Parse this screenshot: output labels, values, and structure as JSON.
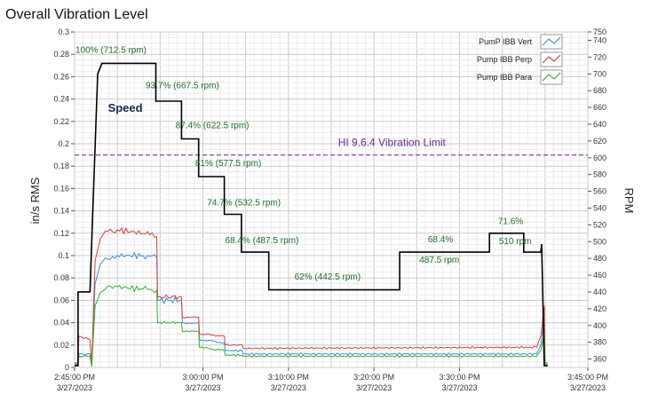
{
  "panel": {
    "title": "Overall Vibration Level"
  },
  "chart_data": {
    "type": "line",
    "title": "Overall Vibration Level",
    "ylabel": "in/s RMS",
    "y2label": "RPM",
    "xlim": [
      "2:45:00 PM",
      "3:45:00 PM"
    ],
    "ylim": [
      0,
      0.3
    ],
    "y2lim": [
      350,
      750
    ],
    "grid": true,
    "legend_position": "top-right",
    "x_ticks": [
      {
        "time": "2:45:00 PM",
        "date": "3/27/2023",
        "minutes": 0
      },
      {
        "time": "3:00:00 PM",
        "date": "3/27/2023",
        "minutes": 15
      },
      {
        "time": "3:10:00 PM",
        "date": "3/27/2023",
        "minutes": 25
      },
      {
        "time": "3:20:00 PM",
        "date": "3/27/2023",
        "minutes": 35
      },
      {
        "time": "3:30:00 PM",
        "date": "3/27/2023",
        "minutes": 45
      },
      {
        "time": "3:45:00 PM",
        "date": "3/27/2023",
        "minutes": 60
      }
    ],
    "y_ticks": [
      "0",
      "0.02",
      "0.04",
      "0.06",
      "0.08",
      "0.1",
      "0.12",
      "0.14",
      "0.16",
      "0.18",
      "0.2",
      "0.22",
      "0.24",
      "0.26",
      "0.28",
      "0.3"
    ],
    "y2_ticks": [
      "360",
      "380",
      "400",
      "420",
      "440",
      "460",
      "480",
      "500",
      "520",
      "540",
      "560",
      "580",
      "600",
      "620",
      "640",
      "660",
      "680",
      "700",
      "720",
      "740",
      "750"
    ],
    "limit_line": {
      "label": "HI 9.6.4 Vibration Limit",
      "value": 0.19,
      "color": "#8e44ad"
    },
    "speed_label": "Speed",
    "speed_series": {
      "name": "Speed",
      "color": "#000000",
      "points": [
        [
          0,
          352
        ],
        [
          0.4,
          352
        ],
        [
          0.4,
          440
        ],
        [
          1.8,
          440
        ],
        [
          2.7,
          700
        ],
        [
          3.2,
          712.5
        ],
        [
          9.5,
          712.5
        ],
        [
          9.5,
          667.5
        ],
        [
          12.5,
          667.5
        ],
        [
          12.5,
          622.5
        ],
        [
          14.5,
          622.5
        ],
        [
          14.5,
          577.5
        ],
        [
          17.5,
          577.5
        ],
        [
          17.5,
          532.5
        ],
        [
          19.5,
          532.5
        ],
        [
          19.5,
          487.5
        ],
        [
          22.7,
          487.5
        ],
        [
          22.7,
          442.5
        ],
        [
          38.0,
          442.5
        ],
        [
          38.0,
          487.5
        ],
        [
          48.5,
          487.5
        ],
        [
          48.5,
          510
        ],
        [
          52.5,
          510
        ],
        [
          52.5,
          487.5
        ],
        [
          54.5,
          487.5
        ],
        [
          54.6,
          497
        ],
        [
          54.9,
          352
        ],
        [
          55.3,
          352
        ]
      ]
    },
    "series": [
      {
        "name": "PumP IBB Vert",
        "color": "#3a8fdc",
        "points": [
          [
            0,
            0.003
          ],
          [
            0.4,
            0.003
          ],
          [
            0.5,
            0.012
          ],
          [
            1.8,
            0.012
          ],
          [
            2.0,
            0.001
          ],
          [
            2.4,
            0.075
          ],
          [
            3.0,
            0.092
          ],
          [
            3.6,
            0.098
          ],
          [
            5.0,
            0.1
          ],
          [
            8.0,
            0.1
          ],
          [
            9.6,
            0.098
          ],
          [
            9.7,
            0.06
          ],
          [
            12.5,
            0.06
          ],
          [
            12.6,
            0.04
          ],
          [
            14.5,
            0.04
          ],
          [
            14.6,
            0.025
          ],
          [
            17.5,
            0.022
          ],
          [
            17.6,
            0.015
          ],
          [
            19.6,
            0.015
          ],
          [
            19.7,
            0.012
          ],
          [
            54.0,
            0.012
          ],
          [
            54.5,
            0.02
          ],
          [
            54.9,
            0.045
          ],
          [
            55.0,
            0.003
          ],
          [
            55.3,
            0.003
          ]
        ]
      },
      {
        "name": "Pump IBB Perp",
        "color": "#e03a3a",
        "points": [
          [
            0,
            0.004
          ],
          [
            0.4,
            0.004
          ],
          [
            0.5,
            0.028
          ],
          [
            1.8,
            0.025
          ],
          [
            2.0,
            0.002
          ],
          [
            2.4,
            0.095
          ],
          [
            3.0,
            0.115
          ],
          [
            3.6,
            0.122
          ],
          [
            5.0,
            0.123
          ],
          [
            8.0,
            0.12
          ],
          [
            9.6,
            0.117
          ],
          [
            9.7,
            0.063
          ],
          [
            12.5,
            0.063
          ],
          [
            12.6,
            0.045
          ],
          [
            14.5,
            0.045
          ],
          [
            14.6,
            0.03
          ],
          [
            17.5,
            0.028
          ],
          [
            17.6,
            0.02
          ],
          [
            19.6,
            0.02
          ],
          [
            19.7,
            0.017
          ],
          [
            54.0,
            0.018
          ],
          [
            54.5,
            0.028
          ],
          [
            54.9,
            0.055
          ],
          [
            55.0,
            0.004
          ],
          [
            55.3,
            0.004
          ]
        ]
      },
      {
        "name": "Pump IBB Para",
        "color": "#2fb22f",
        "points": [
          [
            0,
            0.002
          ],
          [
            0.4,
            0.002
          ],
          [
            0.5,
            0.01
          ],
          [
            1.8,
            0.01
          ],
          [
            2.0,
            0.001
          ],
          [
            2.4,
            0.055
          ],
          [
            3.0,
            0.067
          ],
          [
            3.6,
            0.07
          ],
          [
            5.0,
            0.072
          ],
          [
            8.0,
            0.07
          ],
          [
            9.6,
            0.069
          ],
          [
            9.7,
            0.04
          ],
          [
            12.5,
            0.04
          ],
          [
            12.6,
            0.032
          ],
          [
            14.5,
            0.032
          ],
          [
            14.6,
            0.018
          ],
          [
            17.5,
            0.015
          ],
          [
            17.6,
            0.011
          ],
          [
            19.6,
            0.011
          ],
          [
            19.7,
            0.01
          ],
          [
            54.0,
            0.01
          ],
          [
            54.5,
            0.015
          ],
          [
            54.9,
            0.03
          ],
          [
            55.0,
            0.002
          ],
          [
            55.3,
            0.002
          ]
        ]
      }
    ],
    "annotations": [
      {
        "text": "100% (712.5 rpm)",
        "minutes": 0.1,
        "rpm": 725
      },
      {
        "text": "93.7% (667.5 rpm)",
        "minutes": 8.3,
        "rpm": 683
      },
      {
        "text": "87.4% (622.5 rpm)",
        "minutes": 11.8,
        "rpm": 635
      },
      {
        "text": "81% (577.5 rpm)",
        "minutes": 14.1,
        "rpm": 590
      },
      {
        "text": "74.7% (532.5 rpm)",
        "minutes": 15.5,
        "rpm": 543
      },
      {
        "text": "68.4% (487.5 rpm)",
        "minutes": 17.6,
        "rpm": 498
      },
      {
        "text": "62% (442.5 rpm)",
        "minutes": 25.7,
        "rpm": 455
      },
      {
        "text": "68.4%",
        "minutes": 41.3,
        "rpm": 499
      },
      {
        "text": "487.5 rpm",
        "minutes": 40.3,
        "rpm": 475
      },
      {
        "text": "71.6%",
        "minutes": 49.5,
        "rpm": 521
      },
      {
        "text": "510 rpm",
        "minutes": 49.6,
        "rpm": 497
      }
    ]
  }
}
